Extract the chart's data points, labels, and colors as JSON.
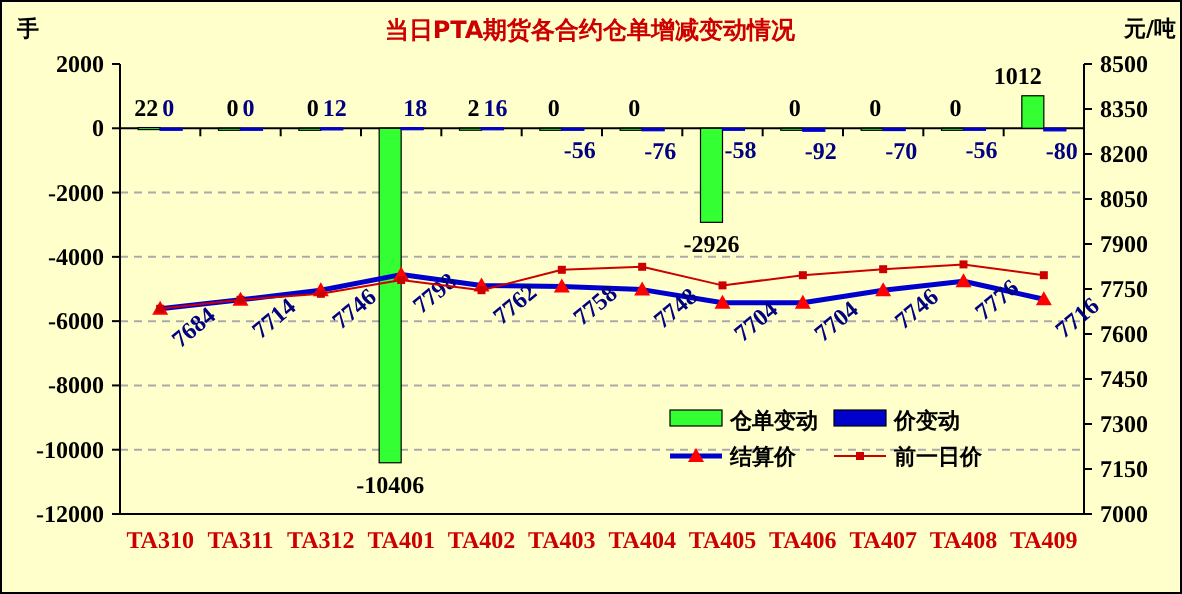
{
  "chart_data": {
    "type": "bar",
    "title": "当日PTA期货各合约仓单增减变动情况",
    "ylabel": "手",
    "y2label": "元/吨",
    "categories": [
      "TA310",
      "TA311",
      "TA312",
      "TA401",
      "TA402",
      "TA403",
      "TA404",
      "TA405",
      "TA406",
      "TA407",
      "TA408",
      "TA409"
    ],
    "series": [
      {
        "name": "仓单变动",
        "color": "#33ff33",
        "values": [
          22,
          0,
          0,
          -10406,
          2,
          0,
          0,
          -2926,
          0,
          0,
          0,
          1012
        ],
        "value_labels": [
          "22",
          "0",
          "0",
          "-10406",
          "2",
          "0",
          "0",
          "-2926",
          "0",
          "0",
          "0",
          "1012"
        ]
      },
      {
        "name": "价变动",
        "color": "#0000cc",
        "values": [
          0,
          0,
          12,
          18,
          16,
          -56,
          -76,
          -58,
          -92,
          -70,
          -56,
          -80
        ],
        "value_labels": [
          "0",
          "0",
          "12",
          "18",
          "16",
          "-56",
          "-76",
          "-58",
          "-92",
          "-70",
          "-56",
          "-80"
        ]
      },
      {
        "name": "结算价",
        "type": "line",
        "axis": "y2",
        "color": "#0000cc",
        "marker": "triangle",
        "values": [
          7684,
          7714,
          7746,
          7798,
          7762,
          7758,
          7748,
          7704,
          7704,
          7746,
          7776,
          7716
        ],
        "value_labels": [
          "7684",
          "7714",
          "7746",
          "7798",
          "7762",
          "7758",
          "7748",
          "7704",
          "7704",
          "7746",
          "7776",
          "7716"
        ]
      },
      {
        "name": "前一日价",
        "type": "line",
        "axis": "y2",
        "color": "#cc0000",
        "marker": "square",
        "values": [
          7684,
          7714,
          7734,
          7780,
          7746,
          7814,
          7824,
          7762,
          7796,
          7816,
          7832,
          7796
        ]
      }
    ],
    "ylim": [
      -12000,
      2000
    ],
    "yticks": [
      -12000,
      -10000,
      -8000,
      -6000,
      -4000,
      -2000,
      0,
      2000
    ],
    "y2lim": [
      7000,
      8500
    ],
    "y2ticks": [
      7000,
      7150,
      7300,
      7450,
      7600,
      7750,
      7900,
      8050,
      8200,
      8350,
      8500
    ],
    "grid": "y",
    "legend": "bottom right",
    "line_style": "solid"
  }
}
